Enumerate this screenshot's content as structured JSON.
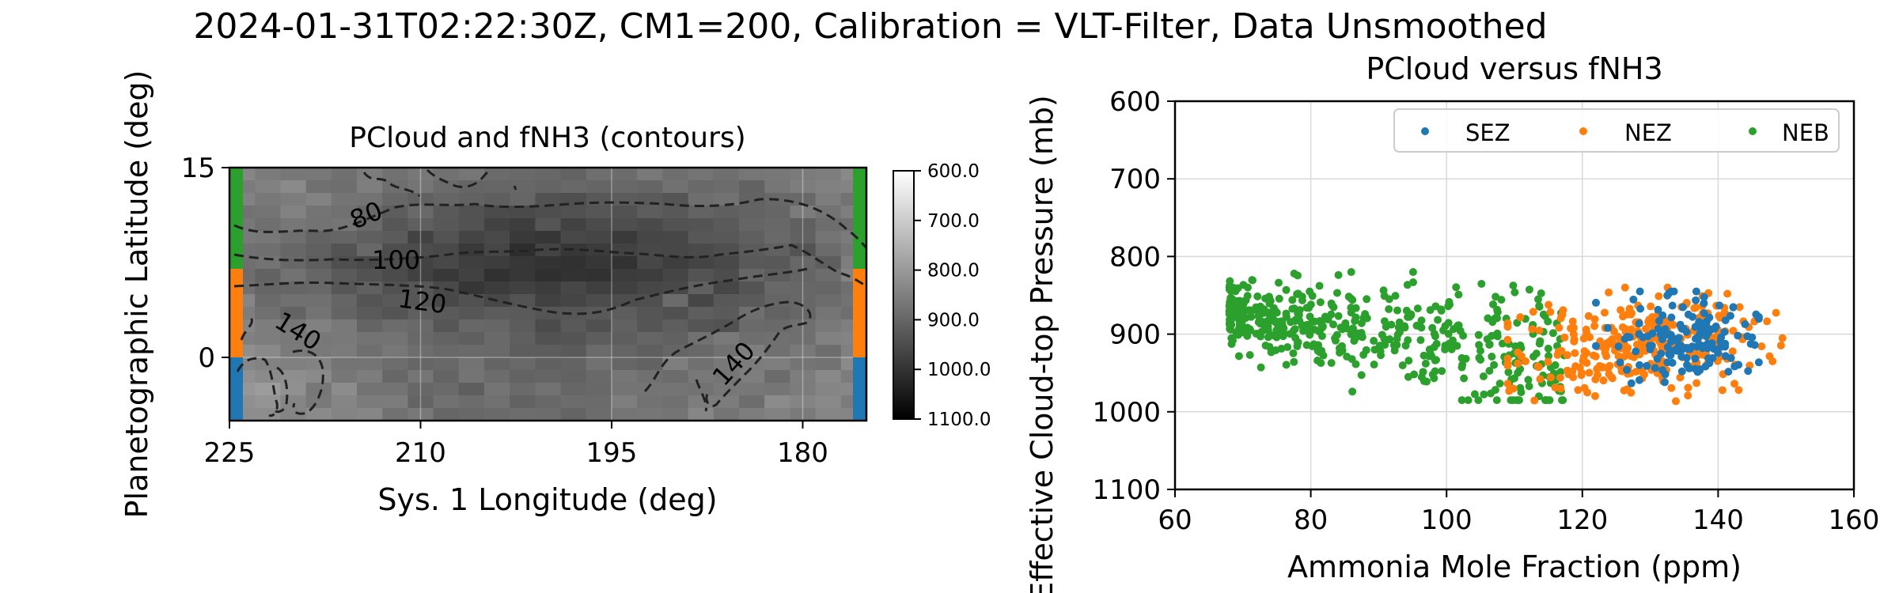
{
  "figure": {
    "title": "2024-01-31T02:22:30Z, CM1=200, Calibration = VLT-Filter, Data Unsmoothed"
  },
  "chart_data": [
    {
      "type": "heatmap",
      "title": "PCloud and fNH3 (contours)",
      "xlabel": "Sys. 1 Longitude (deg)",
      "ylabel": "Planetographic Latitude (deg)",
      "x_ticks": [
        "225",
        "210",
        "195",
        "180"
      ],
      "x_tick_values": [
        225,
        210,
        195,
        180
      ],
      "y_ticks": [
        "15",
        "0"
      ],
      "y_tick_values": [
        15,
        0
      ],
      "xlim": [
        225,
        175
      ],
      "ylim": [
        -5,
        15
      ],
      "grid": true,
      "colormap": "gray_r",
      "colorbar": {
        "range": [
          600,
          1100
        ],
        "ticks": [
          "600.0",
          "700.0",
          "800.0",
          "900.0",
          "1000.0",
          "1100.0"
        ],
        "tick_values": [
          600,
          700,
          800,
          900,
          1000,
          1100
        ]
      },
      "contour_labels": [
        "80",
        "100",
        "120",
        "140",
        "140"
      ],
      "contour_levels": [
        80,
        100,
        120,
        140
      ],
      "contour_style": "dashed",
      "zone_bands": [
        {
          "zone": "SEZ",
          "lat_range": [
            -5,
            0
          ],
          "color": "#1f77b4"
        },
        {
          "zone": "NEZ",
          "lat_range": [
            0,
            7
          ],
          "color": "#ff7f0e"
        },
        {
          "zone": "NEB",
          "lat_range": [
            7,
            15
          ],
          "color": "#2ca02c"
        }
      ],
      "approx_values": {
        "note_free_field": false,
        "pressure_rows": [
          {
            "lat": 14,
            "values": [
              840,
              850,
              860,
              870,
              880,
              890,
              900,
              890,
              880,
              870,
              860,
              850
            ]
          },
          {
            "lat": 10,
            "values": [
              860,
              880,
              900,
              920,
              950,
              970,
              980,
              970,
              950,
              920,
              890,
              870
            ]
          },
          {
            "lat": 7,
            "values": [
              880,
              900,
              930,
              960,
              990,
              1000,
              1000,
              990,
              960,
              930,
              900,
              880
            ]
          },
          {
            "lat": 4,
            "values": [
              860,
              880,
              900,
              920,
              940,
              950,
              950,
              940,
              930,
              910,
              890,
              870
            ]
          },
          {
            "lat": 0,
            "values": [
              830,
              840,
              860,
              880,
              890,
              900,
              900,
              890,
              880,
              870,
              860,
              840
            ]
          },
          {
            "lat": -4,
            "values": [
              820,
              830,
              850,
              870,
              880,
              890,
              890,
              880,
              870,
              860,
              850,
              830
            ]
          }
        ]
      }
    },
    {
      "type": "scatter",
      "title": "PCloud versus fNH3",
      "xlabel": "Ammonia Mole Fraction (ppm)",
      "ylabel": "Effective Cloud-top Pressure (mb)",
      "xlim": [
        60,
        160
      ],
      "ylim": [
        1100,
        600
      ],
      "y_inverted": true,
      "x_ticks": [
        "60",
        "80",
        "100",
        "120",
        "140",
        "160"
      ],
      "x_tick_values": [
        60,
        80,
        100,
        120,
        140,
        160
      ],
      "y_ticks": [
        "600",
        "700",
        "800",
        "900",
        "1000",
        "1100"
      ],
      "y_tick_values": [
        600,
        700,
        800,
        900,
        1000,
        1100
      ],
      "grid": true,
      "legend_position": "top-right",
      "series": [
        {
          "name": "SEZ",
          "color": "#1f77b4",
          "x_range": [
            122,
            146
          ],
          "y_range": [
            845,
            965
          ],
          "centroid": [
            135,
            905
          ],
          "count": 150
        },
        {
          "name": "NEZ",
          "color": "#ff7f0e",
          "x_range": [
            109,
            151
          ],
          "y_range": [
            840,
            992
          ],
          "centroid": [
            128,
            915
          ],
          "count": 300
        },
        {
          "name": "NEB",
          "color": "#2ca02c",
          "x_range": [
            68,
            118
          ],
          "y_range": [
            820,
            985
          ],
          "centroid": [
            85,
            900
          ],
          "count": 500
        }
      ]
    }
  ]
}
